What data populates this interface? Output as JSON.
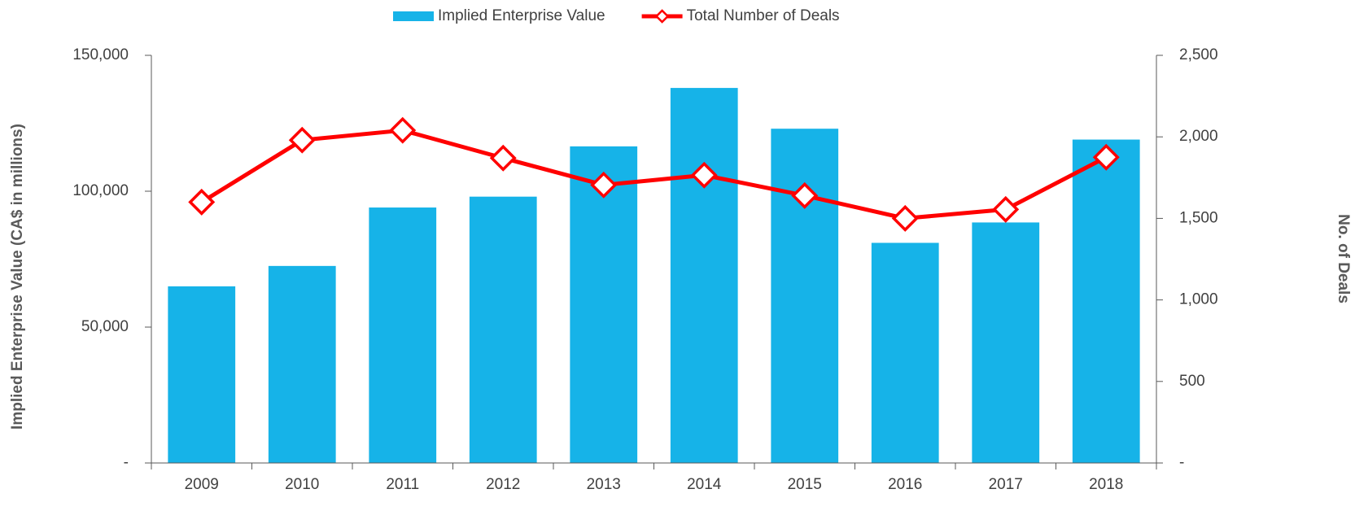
{
  "chart_data": {
    "type": "bar",
    "categories": [
      "2009",
      "2010",
      "2011",
      "2012",
      "2013",
      "2014",
      "2015",
      "2016",
      "2017",
      "2018"
    ],
    "series": [
      {
        "name": "Implied Enterprise Value",
        "type": "bar",
        "color": "#16b3e8",
        "values": [
          65000,
          72500,
          94000,
          98000,
          116500,
          138000,
          123000,
          81000,
          88500,
          119000
        ]
      },
      {
        "name": "Total Number of Deals",
        "type": "line",
        "axis": "y2",
        "color": "#ff0000",
        "values": [
          1600,
          1980,
          2040,
          1870,
          1705,
          1765,
          1640,
          1500,
          1555,
          1875
        ]
      }
    ],
    "ylabel": "Implied Enterprise Value (CA$ in millions)",
    "y2label": "No. of Deals",
    "ylim": [
      0,
      150000
    ],
    "yticks": [
      {
        "value": 0,
        "label": "-"
      },
      {
        "value": 50000,
        "label": "50,000"
      },
      {
        "value": 100000,
        "label": "100,000"
      },
      {
        "value": 150000,
        "label": "150,000"
      }
    ],
    "y2lim": [
      0,
      2500
    ],
    "y2ticks": [
      {
        "value": 0,
        "label": "-"
      },
      500,
      {
        "value": 1000,
        "label": "1,000"
      },
      {
        "value": 1500,
        "label": "1,500"
      },
      {
        "value": 2000,
        "label": "2,000"
      },
      {
        "value": 2500,
        "label": "2,500"
      }
    ],
    "legend": "top"
  }
}
